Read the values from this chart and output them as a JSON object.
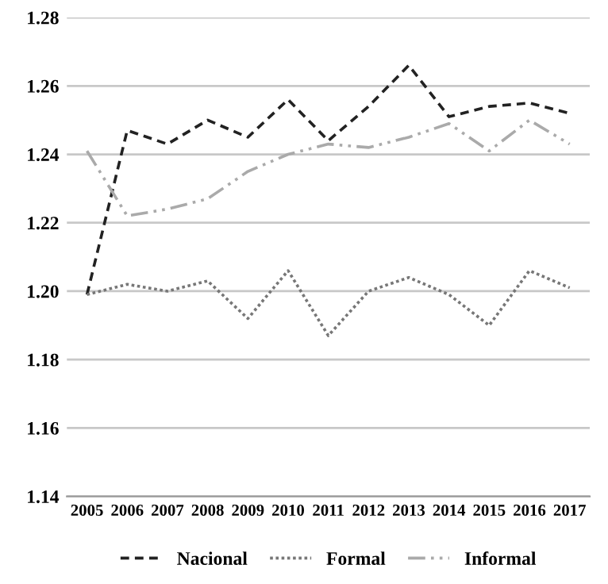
{
  "chart_data": {
    "type": "line",
    "categories": [
      "2005",
      "2006",
      "2007",
      "2008",
      "2009",
      "2010",
      "2011",
      "2012",
      "2013",
      "2014",
      "2015",
      "2016",
      "2017"
    ],
    "series": [
      {
        "name": "Nacional",
        "color": "#222222",
        "line_style": "dashed",
        "values": [
          1.199,
          1.247,
          1.243,
          1.25,
          1.245,
          1.256,
          1.244,
          1.254,
          1.266,
          1.251,
          1.254,
          1.255,
          1.252
        ]
      },
      {
        "name": "Formal",
        "color": "#777777",
        "line_style": "dotted",
        "values": [
          1.199,
          1.202,
          1.2,
          1.203,
          1.192,
          1.206,
          1.187,
          1.2,
          1.204,
          1.199,
          1.19,
          1.206,
          1.201
        ]
      },
      {
        "name": "Informal",
        "color": "#aaaaaa",
        "line_style": "dashdot",
        "values": [
          1.241,
          1.222,
          1.224,
          1.227,
          1.235,
          1.24,
          1.243,
          1.242,
          1.245,
          1.249,
          1.241,
          1.25,
          1.243
        ]
      }
    ],
    "ylim": [
      1.14,
      1.28
    ],
    "yticks": [
      {
        "value": 1.14,
        "label": "1.14"
      },
      {
        "value": 1.16,
        "label": "1.16"
      },
      {
        "value": 1.18,
        "label": "1.18"
      },
      {
        "value": 1.2,
        "label": "1.20"
      },
      {
        "value": 1.22,
        "label": "1.22"
      },
      {
        "value": 1.24,
        "label": "1.24"
      },
      {
        "value": 1.26,
        "label": "1.26"
      },
      {
        "value": 1.28,
        "label": "1.28"
      }
    ],
    "grid": "y",
    "legend": "bottom",
    "marker": "none"
  }
}
